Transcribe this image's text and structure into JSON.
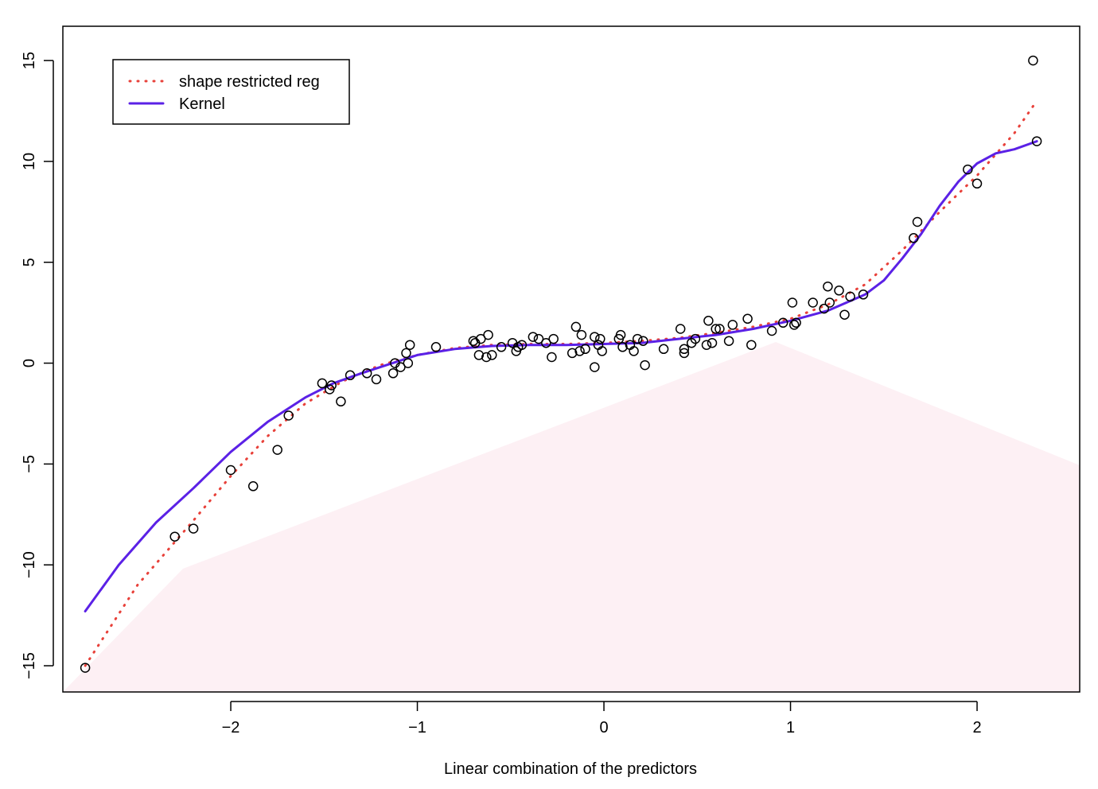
{
  "chart_data": {
    "type": "scatter",
    "title": "",
    "xlabel": "Linear combination of the predictors",
    "ylabel": "",
    "xlim": [
      -2.9,
      2.55
    ],
    "ylim": [
      -16.3,
      16.7
    ],
    "x_ticks": [
      -2,
      -1,
      0,
      1,
      2
    ],
    "y_ticks": [
      -15,
      -10,
      -5,
      0,
      5,
      10,
      15
    ],
    "x_tick_labels": [
      "−2",
      "−1",
      "0",
      "1",
      "2"
    ],
    "y_tick_labels": [
      "−15",
      "−10",
      "−5",
      "0",
      "5",
      "10",
      "15"
    ],
    "grid": false,
    "legend": {
      "position": "top-left",
      "entries": [
        {
          "label": "shape restricted reg",
          "color": "#e8413a",
          "style": "dotted"
        },
        {
          "label": "Kernel",
          "color": "#5b21e6",
          "style": "solid"
        }
      ]
    },
    "points": [
      [
        -2.78,
        -15.1
      ],
      [
        -2.3,
        -8.6
      ],
      [
        -2.2,
        -8.2
      ],
      [
        -2.0,
        -5.3
      ],
      [
        -1.88,
        -6.1
      ],
      [
        -1.75,
        -4.3
      ],
      [
        -1.69,
        -2.6
      ],
      [
        -1.51,
        -1.0
      ],
      [
        -1.47,
        -1.3
      ],
      [
        -1.46,
        -1.1
      ],
      [
        -1.41,
        -1.9
      ],
      [
        -1.36,
        -0.6
      ],
      [
        -1.27,
        -0.5
      ],
      [
        -1.22,
        -0.8
      ],
      [
        -1.13,
        -0.5
      ],
      [
        -1.12,
        0.0
      ],
      [
        -1.09,
        -0.2
      ],
      [
        -1.06,
        0.5
      ],
      [
        -1.05,
        0.0
      ],
      [
        -1.04,
        0.9
      ],
      [
        -0.9,
        0.8
      ],
      [
        -0.7,
        1.1
      ],
      [
        -0.69,
        1.0
      ],
      [
        -0.67,
        0.4
      ],
      [
        -0.66,
        1.2
      ],
      [
        -0.63,
        0.3
      ],
      [
        -0.62,
        1.4
      ],
      [
        -0.6,
        0.4
      ],
      [
        -0.55,
        0.8
      ],
      [
        -0.49,
        1.0
      ],
      [
        -0.47,
        0.6
      ],
      [
        -0.46,
        0.8
      ],
      [
        -0.44,
        0.9
      ],
      [
        -0.38,
        1.3
      ],
      [
        -0.35,
        1.2
      ],
      [
        -0.31,
        1.0
      ],
      [
        -0.28,
        0.3
      ],
      [
        -0.27,
        1.2
      ],
      [
        -0.17,
        0.5
      ],
      [
        -0.15,
        1.8
      ],
      [
        -0.13,
        0.6
      ],
      [
        -0.12,
        1.4
      ],
      [
        -0.1,
        0.7
      ],
      [
        -0.05,
        1.3
      ],
      [
        -0.05,
        -0.2
      ],
      [
        -0.03,
        0.9
      ],
      [
        -0.02,
        1.2
      ],
      [
        -0.01,
        0.6
      ],
      [
        0.08,
        1.2
      ],
      [
        0.09,
        1.4
      ],
      [
        0.1,
        0.8
      ],
      [
        0.14,
        0.9
      ],
      [
        0.16,
        0.6
      ],
      [
        0.18,
        1.2
      ],
      [
        0.21,
        1.1
      ],
      [
        0.22,
        -0.1
      ],
      [
        0.32,
        0.7
      ],
      [
        0.41,
        1.7
      ],
      [
        0.43,
        0.5
      ],
      [
        0.43,
        0.7
      ],
      [
        0.47,
        1.0
      ],
      [
        0.49,
        1.2
      ],
      [
        0.55,
        0.9
      ],
      [
        0.56,
        2.1
      ],
      [
        0.58,
        1.0
      ],
      [
        0.6,
        1.7
      ],
      [
        0.62,
        1.7
      ],
      [
        0.67,
        1.1
      ],
      [
        0.69,
        1.9
      ],
      [
        0.77,
        2.2
      ],
      [
        0.79,
        0.9
      ],
      [
        0.9,
        1.6
      ],
      [
        0.96,
        2.0
      ],
      [
        1.01,
        3.0
      ],
      [
        1.02,
        1.9
      ],
      [
        1.03,
        2.0
      ],
      [
        1.12,
        3.0
      ],
      [
        1.18,
        2.7
      ],
      [
        1.2,
        3.8
      ],
      [
        1.21,
        3.0
      ],
      [
        1.26,
        3.6
      ],
      [
        1.29,
        2.4
      ],
      [
        1.32,
        3.3
      ],
      [
        1.39,
        3.4
      ],
      [
        1.66,
        6.2
      ],
      [
        1.68,
        7.0
      ],
      [
        1.95,
        9.6
      ],
      [
        2.0,
        8.9
      ],
      [
        2.3,
        15.0
      ],
      [
        2.32,
        11.0
      ]
    ],
    "series": [
      {
        "name": "shape restricted reg",
        "x": [
          -2.78,
          -2.5,
          -2.2,
          -2.0,
          -1.8,
          -1.6,
          -1.4,
          -1.2,
          -1.0,
          -0.8,
          -0.6,
          -0.4,
          -0.2,
          0.0,
          0.2,
          0.4,
          0.6,
          0.8,
          1.0,
          1.2,
          1.4,
          1.6,
          1.8,
          2.0,
          2.2,
          2.32
        ],
        "y": [
          -15.0,
          -11.0,
          -7.8,
          -5.6,
          -3.6,
          -2.0,
          -0.9,
          -0.1,
          0.4,
          0.75,
          0.9,
          0.95,
          0.95,
          1.0,
          1.1,
          1.25,
          1.5,
          1.8,
          2.2,
          2.9,
          3.9,
          5.6,
          7.5,
          9.3,
          11.4,
          13.0
        ]
      },
      {
        "name": "Kernel",
        "x": [
          -2.78,
          -2.6,
          -2.4,
          -2.2,
          -2.0,
          -1.8,
          -1.6,
          -1.45,
          -1.3,
          -1.15,
          -1.0,
          -0.8,
          -0.6,
          -0.4,
          -0.2,
          0.0,
          0.2,
          0.4,
          0.6,
          0.8,
          1.0,
          1.2,
          1.4,
          1.5,
          1.6,
          1.7,
          1.8,
          1.9,
          2.0,
          2.1,
          2.2,
          2.32
        ],
        "y": [
          -12.3,
          -10.0,
          -7.9,
          -6.2,
          -4.4,
          -2.9,
          -1.7,
          -1.0,
          -0.5,
          -0.05,
          0.4,
          0.7,
          0.85,
          0.9,
          0.9,
          0.95,
          1.0,
          1.2,
          1.4,
          1.7,
          2.1,
          2.6,
          3.4,
          4.1,
          5.2,
          6.4,
          7.8,
          9.0,
          9.9,
          10.4,
          10.6,
          11.0
        ]
      }
    ]
  }
}
